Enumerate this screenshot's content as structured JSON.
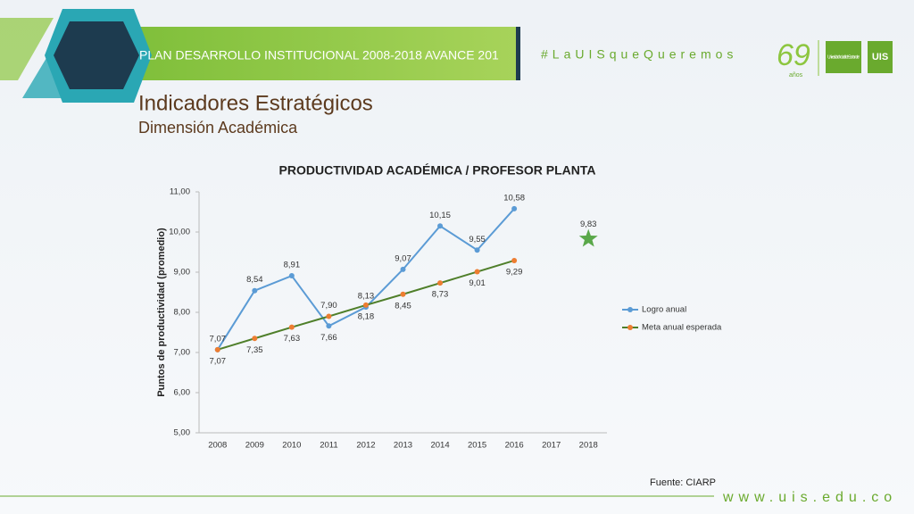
{
  "header": {
    "banner": "PLAN DESARROLLO INSTITUCIONAL 2008-2018 AVANCE 201",
    "hashtag": "#LaUISqueQueremos",
    "anniversary": "69",
    "anniversary_sub": "años",
    "university": "Universidad Industrial de Santander",
    "university_short": "UIS"
  },
  "title": "Indicadores Estratégicos",
  "subtitle": "Dimensión Académica",
  "source": "Fuente: CIARP",
  "footer": "www.uis.edu.co",
  "chart_data": {
    "type": "line",
    "title": "PRODUCTIVIDAD ACADÉMICA / PROFESOR PLANTA",
    "y_label": "Puntos de productividad (promedio)",
    "categories": [
      "2008",
      "2009",
      "2010",
      "2011",
      "2012",
      "2013",
      "2014",
      "2015",
      "2016",
      "2017",
      "2018"
    ],
    "series": [
      {
        "name": "Logro anual",
        "color": "#5b9bd5",
        "line_color": "#5b9bd5",
        "values": [
          7.07,
          8.54,
          8.91,
          7.66,
          8.13,
          9.07,
          10.15,
          9.55,
          10.58,
          null,
          null
        ],
        "value_labels": [
          "7,07",
          "8,54",
          "8,91",
          "7,66",
          "8,13",
          "9,07",
          "10,15",
          "9,55",
          "10,58",
          null,
          null
        ]
      },
      {
        "name": "Meta anual esperada",
        "color": "#ed7d31",
        "line_color": "#4f7f2a",
        "values": [
          7.07,
          7.35,
          7.63,
          7.9,
          8.18,
          8.45,
          8.73,
          9.01,
          9.29,
          null,
          null
        ],
        "value_labels": [
          "7,07",
          "7,35",
          "7,63",
          "7,90",
          "8,18",
          "8,45",
          "8,73",
          "9,01",
          "9,29",
          null,
          null
        ]
      }
    ],
    "target": {
      "value": 9.83,
      "value_label": "9,83",
      "color": "#5aa84a"
    },
    "ylim": [
      5,
      11
    ],
    "yticks": [
      {
        "value": 5,
        "label": "5,00"
      },
      {
        "value": 6,
        "label": "6,00"
      },
      {
        "value": 7,
        "label": "7,00"
      },
      {
        "value": 8,
        "label": "8,00"
      },
      {
        "value": 9,
        "label": "9,00"
      },
      {
        "value": 10,
        "label": "10,00"
      },
      {
        "value": 11,
        "label": "11,00"
      }
    ],
    "grid": false,
    "legend": "right"
  }
}
